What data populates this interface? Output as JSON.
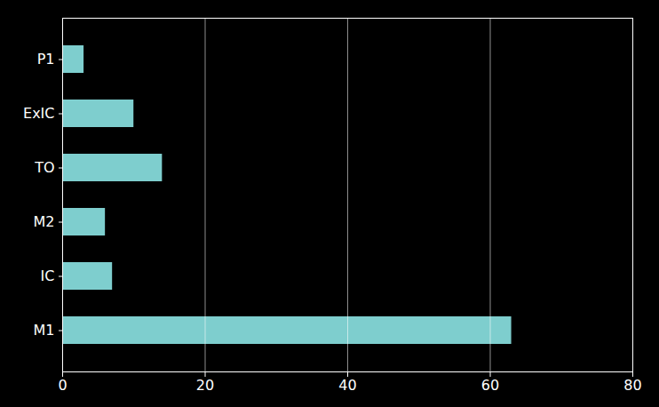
{
  "chart_data": {
    "type": "bar",
    "orientation": "horizontal",
    "categories": [
      "M1",
      "IC",
      "M2",
      "TO",
      "ExIC",
      "P1"
    ],
    "values": [
      63,
      7,
      6,
      14,
      10,
      3
    ],
    "color": "#7ecece",
    "xlim": [
      0,
      80
    ],
    "xticks": [
      0,
      20,
      40,
      60,
      80
    ],
    "grid": true
  }
}
